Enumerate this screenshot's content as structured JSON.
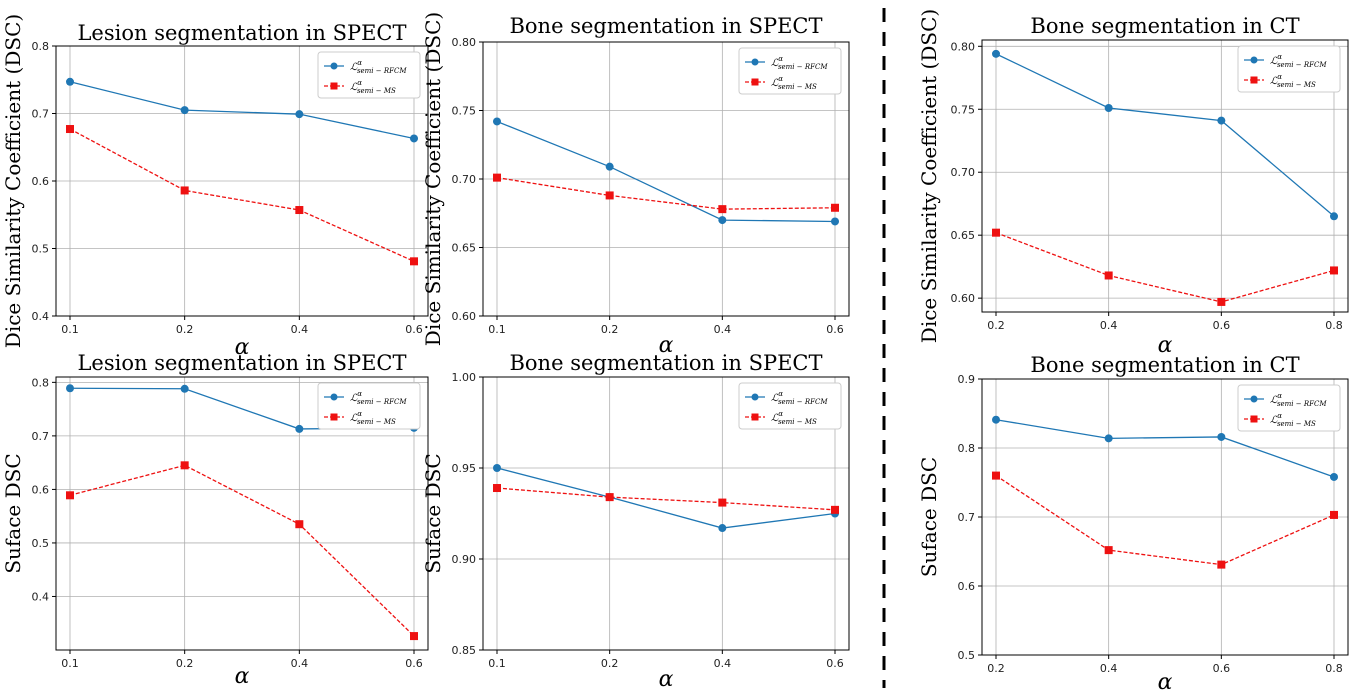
{
  "colors": {
    "rfcm": "#1f77b4",
    "ms": "#ee1111",
    "grid": "#b0b0b0"
  },
  "legend_labels": {
    "base": "ℒ",
    "sup": "α",
    "rfcm_sub": "semi − RFCM",
    "ms_sub": "semi − MS"
  },
  "chart_data": [
    {
      "type": "line",
      "title": "Lesion segmentation in SPECT",
      "xlabel": "α",
      "ylabel": "Dice Similarity Coefficient (DSC)",
      "categories": [
        "0.1",
        "0.2",
        "0.4",
        "0.6"
      ],
      "ylim": [
        0.4,
        0.8
      ],
      "yticks": [
        "0.4",
        "0.5",
        "0.6",
        "0.7",
        "0.8"
      ],
      "legend": "top-right",
      "grid": true,
      "series": [
        {
          "name": "rfcm",
          "values": [
            0.747,
            0.705,
            0.699,
            0.663
          ]
        },
        {
          "name": "ms",
          "values": [
            0.677,
            0.586,
            0.557,
            0.481
          ]
        }
      ]
    },
    {
      "type": "line",
      "title": "Bone segmentation in SPECT",
      "xlabel": "α",
      "ylabel": "Dice Similarity Coefficient (DSC)",
      "categories": [
        "0.1",
        "0.2",
        "0.4",
        "0.6"
      ],
      "ylim": [
        0.6,
        0.8
      ],
      "yticks": [
        "0.60",
        "0.65",
        "0.70",
        "0.75",
        "0.80"
      ],
      "legend": "top-right",
      "grid": true,
      "series": [
        {
          "name": "rfcm",
          "values": [
            0.742,
            0.709,
            0.67,
            0.669
          ]
        },
        {
          "name": "ms",
          "values": [
            0.701,
            0.688,
            0.678,
            0.679
          ]
        }
      ]
    },
    {
      "type": "line",
      "title": "Bone segmentation in CT",
      "xlabel": "α",
      "ylabel": "Dice Similarity Coefficient (DSC)",
      "categories": [
        "0.2",
        "0.4",
        "0.6",
        "0.8"
      ],
      "ylim": [
        0.589,
        0.805
      ],
      "yticks": [
        "0.60",
        "0.65",
        "0.70",
        "0.75",
        "0.80"
      ],
      "legend": "top-right",
      "grid": true,
      "series": [
        {
          "name": "rfcm",
          "values": [
            0.794,
            0.751,
            0.741,
            0.665
          ]
        },
        {
          "name": "ms",
          "values": [
            0.652,
            0.618,
            0.597,
            0.622
          ]
        }
      ]
    },
    {
      "type": "line",
      "title": "Lesion segmentation in SPECT",
      "xlabel": "α",
      "ylabel": "Suface DSC",
      "categories": [
        "0.1",
        "0.2",
        "0.4",
        "0.6"
      ],
      "ylim": [
        0.3,
        0.81
      ],
      "yticks": [
        "0.4",
        "0.5",
        "0.6",
        "0.7",
        "0.8"
      ],
      "legend": "top-right",
      "grid": true,
      "series": [
        {
          "name": "rfcm",
          "values": [
            0.789,
            0.788,
            0.713,
            0.715
          ]
        },
        {
          "name": "ms",
          "values": [
            0.589,
            0.645,
            0.535,
            0.326
          ]
        }
      ]
    },
    {
      "type": "line",
      "title": "Bone segmentation in SPECT",
      "xlabel": "α",
      "ylabel": "Suface DSC",
      "categories": [
        "0.1",
        "0.2",
        "0.4",
        "0.6"
      ],
      "ylim": [
        0.85,
        1.0
      ],
      "yticks": [
        "0.85",
        "0.90",
        "0.95",
        "1.00"
      ],
      "legend": "top-right",
      "grid": true,
      "series": [
        {
          "name": "rfcm",
          "values": [
            0.95,
            0.934,
            0.917,
            0.925
          ]
        },
        {
          "name": "ms",
          "values": [
            0.939,
            0.934,
            0.931,
            0.927
          ]
        }
      ]
    },
    {
      "type": "line",
      "title": "Bone segmentation in CT",
      "xlabel": "α",
      "ylabel": "Suface DSC",
      "categories": [
        "0.2",
        "0.4",
        "0.6",
        "0.8"
      ],
      "ylim": [
        0.5,
        0.9
      ],
      "yticks": [
        "0.5",
        "0.6",
        "0.7",
        "0.8",
        "0.9"
      ],
      "legend": "top-right",
      "grid": true,
      "series": [
        {
          "name": "rfcm",
          "values": [
            0.841,
            0.814,
            0.816,
            0.758
          ]
        },
        {
          "name": "ms",
          "values": [
            0.76,
            0.652,
            0.631,
            0.703
          ]
        }
      ]
    }
  ]
}
